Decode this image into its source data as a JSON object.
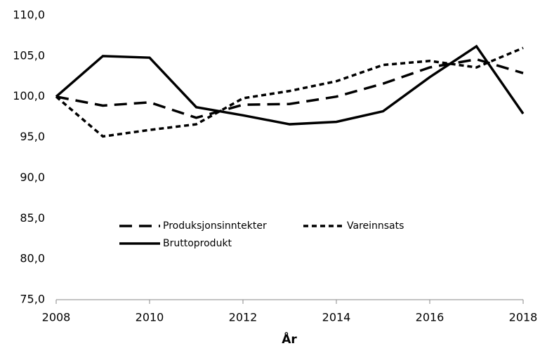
{
  "chart_data": {
    "type": "line",
    "x_label": "År",
    "x": [
      2008,
      2009,
      2010,
      2011,
      2012,
      2013,
      2014,
      2015,
      2016,
      2017,
      2018
    ],
    "series": [
      {
        "name": "Produksjonsinntekter",
        "color": "#000000",
        "dash": "long",
        "values": [
          100,
          98.9,
          99.3,
          97.4,
          99.0,
          99.1,
          100.0,
          101.6,
          103.6,
          104.6,
          102.9
        ]
      },
      {
        "name": "Vareinnsats",
        "color": "#000000",
        "dash": "short",
        "values": [
          100,
          95.1,
          95.9,
          96.6,
          99.8,
          100.7,
          101.9,
          103.9,
          104.4,
          103.6,
          106.0
        ]
      },
      {
        "name": "Bruttoprodukt",
        "color": "#000000",
        "dash": "solid",
        "values": [
          100,
          105.0,
          104.8,
          98.7,
          97.7,
          96.6,
          96.9,
          98.2,
          102.4,
          106.2,
          97.9
        ]
      }
    ],
    "xlim": [
      2008,
      2018
    ],
    "xticks": [
      2008,
      2010,
      2012,
      2014,
      2016,
      2018
    ],
    "ylim": [
      75,
      110
    ],
    "yticks": [
      {
        "value": 75,
        "label": "75,0"
      },
      {
        "value": 80,
        "label": "80,0"
      },
      {
        "value": 85,
        "label": "85,0"
      },
      {
        "value": 90,
        "label": "90,0"
      },
      {
        "value": 95,
        "label": "95,0"
      },
      {
        "value": 100,
        "label": "100,0"
      },
      {
        "value": 105,
        "label": "105,0"
      },
      {
        "value": 110,
        "label": "110,0"
      }
    ]
  }
}
